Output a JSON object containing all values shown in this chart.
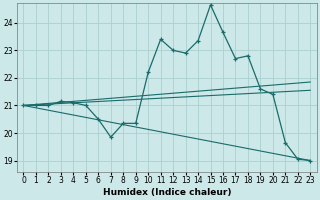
{
  "xlabel": "Humidex (Indice chaleur)",
  "bg_color": "#cce8e8",
  "grid_color": "#aad0d0",
  "line_color": "#1a6b6b",
  "xlim": [
    -0.5,
    23.5
  ],
  "ylim": [
    18.6,
    24.7
  ],
  "xticks": [
    0,
    1,
    2,
    3,
    4,
    5,
    6,
    7,
    8,
    9,
    10,
    11,
    12,
    13,
    14,
    15,
    16,
    17,
    18,
    19,
    20,
    21,
    22,
    23
  ],
  "yticks": [
    19,
    20,
    21,
    22,
    23,
    24
  ],
  "series1_x": [
    0,
    1,
    2,
    3,
    4,
    5,
    6,
    7,
    8,
    9,
    10,
    11,
    12,
    13,
    14,
    15,
    16,
    17,
    18,
    19,
    20,
    21,
    22,
    23
  ],
  "series1_y": [
    21.0,
    21.0,
    21.0,
    21.15,
    21.1,
    21.0,
    20.5,
    19.85,
    20.35,
    20.35,
    22.2,
    23.4,
    23.0,
    22.9,
    23.35,
    24.65,
    23.65,
    22.7,
    22.8,
    21.6,
    21.4,
    19.65,
    19.05,
    19.0
  ],
  "series2_x": [
    0,
    23
  ],
  "series2_y": [
    21.0,
    19.0
  ],
  "series3_x": [
    0,
    23
  ],
  "series3_y": [
    21.0,
    21.55
  ],
  "series4_x": [
    0,
    23
  ],
  "series4_y": [
    21.0,
    21.85
  ]
}
